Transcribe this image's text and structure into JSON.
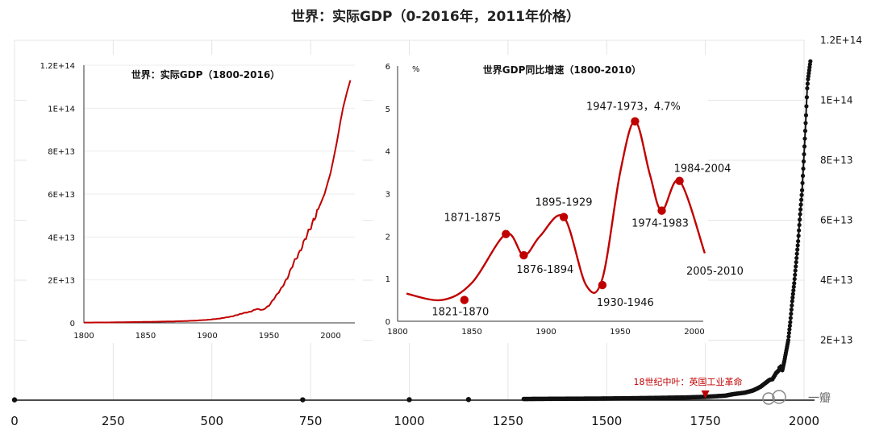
{
  "title": "世界：实际GDP（0-2016年，2011年价格）",
  "chart_data": [
    {
      "id": "main",
      "type": "scatter",
      "title": "世界：实际GDP（0-2016年，2011年价格）",
      "xlim": [
        0,
        2030
      ],
      "ylim": [
        0,
        120000000000000.0
      ],
      "x_ticks": [
        0,
        250,
        500,
        750,
        1000,
        1250,
        1500,
        1750,
        2000
      ],
      "x_tick_labels": [
        "0",
        "250",
        "500",
        "750",
        "1000",
        "1250",
        "1500",
        "1750",
        "2000"
      ],
      "y_ticks": [
        20000000000000.0,
        40000000000000.0,
        60000000000000.0,
        80000000000000.0,
        100000000000000.0,
        120000000000000.0
      ],
      "y_tick_labels": [
        "2E+13",
        "4E+13",
        "6E+13",
        "8E+13",
        "1E+14",
        "1.2E+14"
      ],
      "y_axis_side": "right",
      "series": [
        {
          "name": "世界实际GDP",
          "points": [
            [
              0,
              100000000000.0
            ],
            [
              730,
              130000000000.0
            ],
            [
              1000,
              160000000000.0
            ],
            [
              1150,
              200000000000.0
            ],
            [
              1300,
              400000000000.0
            ],
            [
              1500,
              550000000000.0
            ],
            [
              1600,
              700000000000.0
            ],
            [
              1700,
              900000000000.0
            ],
            [
              1750,
              1100000000000.0
            ],
            [
              1800,
              1500000000000.0
            ],
            [
              1820,
              2000000000000.0
            ],
            [
              1850,
              2500000000000.0
            ],
            [
              1870,
              3200000000000.0
            ],
            [
              1880,
              3800000000000.0
            ],
            [
              1890,
              4500000000000.0
            ],
            [
              1900,
              5500000000000.0
            ],
            [
              1910,
              6500000000000.0
            ],
            [
              1913,
              6800000000000.0
            ],
            [
              1920,
              7000000000000.0
            ],
            [
              1929,
              9000000000000.0
            ],
            [
              1935,
              9800000000000.0
            ],
            [
              1940,
              11500000000000.0
            ],
            [
              1945,
              10000000000000.0
            ],
            [
              1950,
              13000000000000.0
            ],
            [
              1955,
              16500000000000.0
            ],
            [
              1960,
              20000000000000.0
            ],
            [
              1965,
              26000000000000.0
            ],
            [
              1970,
              33000000000000.0
            ],
            [
              1975,
              39000000000000.0
            ],
            [
              1980,
              46000000000000.0
            ],
            [
              1985,
              53000000000000.0
            ],
            [
              1990,
              62000000000000.0
            ],
            [
              1995,
              70000000000000.0
            ],
            [
              2000,
              82000000000000.0
            ],
            [
              2005,
              95000000000000.0
            ],
            [
              2008,
              104000000000000.0
            ],
            [
              2010,
              107000000000000.0
            ],
            [
              2012,
              109000000000000.0
            ],
            [
              2016,
              113000000000000.0
            ]
          ]
        }
      ],
      "annotation": {
        "x": 1750,
        "label": "18世纪中叶：英国工业革命"
      }
    },
    {
      "id": "inset-gdp",
      "type": "line",
      "title": "世界：实际GDP（1800-2016）",
      "xlim": [
        1800,
        2016
      ],
      "ylim": [
        0,
        120000000000000.0
      ],
      "x_ticks": [
        1800,
        1850,
        1900,
        1950,
        2000
      ],
      "x_tick_labels": [
        "1800",
        "1850",
        "1900",
        "1950",
        "2000"
      ],
      "y_ticks": [
        0,
        20000000000000.0,
        40000000000000.0,
        60000000000000.0,
        80000000000000.0,
        100000000000000.0,
        120000000000000.0
      ],
      "y_tick_labels": [
        "0",
        "2E+13",
        "4E+13",
        "6E+13",
        "8E+13",
        "1E+14",
        "1.2E+14"
      ],
      "series": [
        {
          "name": "实际GDP",
          "points": [
            [
              1800,
              150000000000.0
            ],
            [
              1820,
              200000000000.0
            ],
            [
              1850,
              450000000000.0
            ],
            [
              1870,
              650000000000.0
            ],
            [
              1880,
              800000000000.0
            ],
            [
              1890,
              1050000000000.0
            ],
            [
              1900,
              1400000000000.0
            ],
            [
              1910,
              2000000000000.0
            ],
            [
              1913,
              2300000000000.0
            ],
            [
              1920,
              3000000000000.0
            ],
            [
              1925,
              3800000000000.0
            ],
            [
              1929,
              4500000000000.0
            ],
            [
              1935,
              5200000000000.0
            ],
            [
              1940,
              6500000000000.0
            ],
            [
              1945,
              6000000000000.0
            ],
            [
              1950,
              8000000000000.0
            ],
            [
              1955,
              12000000000000.0
            ],
            [
              1960,
              16000000000000.0
            ],
            [
              1965,
              21000000000000.0
            ],
            [
              1970,
              28000000000000.0
            ],
            [
              1975,
              33000000000000.0
            ],
            [
              1980,
              40000000000000.0
            ],
            [
              1985,
              46000000000000.0
            ],
            [
              1990,
              53000000000000.0
            ],
            [
              1995,
              60000000000000.0
            ],
            [
              2000,
              70000000000000.0
            ],
            [
              2005,
              84000000000000.0
            ],
            [
              2008,
              94000000000000.0
            ],
            [
              2010,
              100000000000000.0
            ],
            [
              2013,
              107000000000000.0
            ],
            [
              2016,
              113000000000000.0
            ]
          ]
        }
      ]
    },
    {
      "id": "inset-growth",
      "type": "line",
      "title": "世界GDP同比增速（1800-2010）",
      "ylabel": "%",
      "xlim": [
        1800,
        2010
      ],
      "ylim": [
        0,
        6
      ],
      "x_ticks": [
        1800,
        1850,
        1900,
        1950,
        2000
      ],
      "x_tick_labels": [
        "1800",
        "1850",
        "1900",
        "1950",
        "2000"
      ],
      "y_ticks": [
        0,
        1,
        2,
        3,
        4,
        5,
        6
      ],
      "y_tick_labels": [
        "0",
        "1",
        "2",
        "3",
        "4",
        "5",
        "6"
      ],
      "series": [
        {
          "name": "同比增速",
          "points": [
            [
              1806,
              0.65
            ],
            [
              1830,
              0.5
            ],
            [
              1850,
              0.9
            ],
            [
              1873,
              2.05
            ],
            [
              1885,
              1.55
            ],
            [
              1896,
              2.0
            ],
            [
              1912,
              2.45
            ],
            [
              1927,
              0.85
            ],
            [
              1938,
              1.0
            ],
            [
              1950,
              3.5
            ],
            [
              1960,
              4.7
            ],
            [
              1970,
              3.45
            ],
            [
              1978,
              2.6
            ],
            [
              1990,
              3.3
            ],
            [
              2007,
              1.6
            ]
          ]
        }
      ],
      "markers": [
        {
          "x": 1845,
          "y": 0.5,
          "label": "1821-1870"
        },
        {
          "x": 1873,
          "y": 2.05,
          "label": "1871-1875"
        },
        {
          "x": 1885,
          "y": 1.55,
          "label": "1876-1894"
        },
        {
          "x": 1912,
          "y": 2.45,
          "label": "1895-1929"
        },
        {
          "x": 1938,
          "y": 0.85,
          "label": "1930-1946"
        },
        {
          "x": 1960,
          "y": 4.7,
          "label": "1947-1973，4.7%"
        },
        {
          "x": 1978,
          "y": 2.6,
          "label": "1974-1983"
        },
        {
          "x": 1990,
          "y": 3.3,
          "label": "1984-2004"
        }
      ],
      "end_label": {
        "label": "2005-2010"
      }
    }
  ],
  "watermark": "一瓣"
}
